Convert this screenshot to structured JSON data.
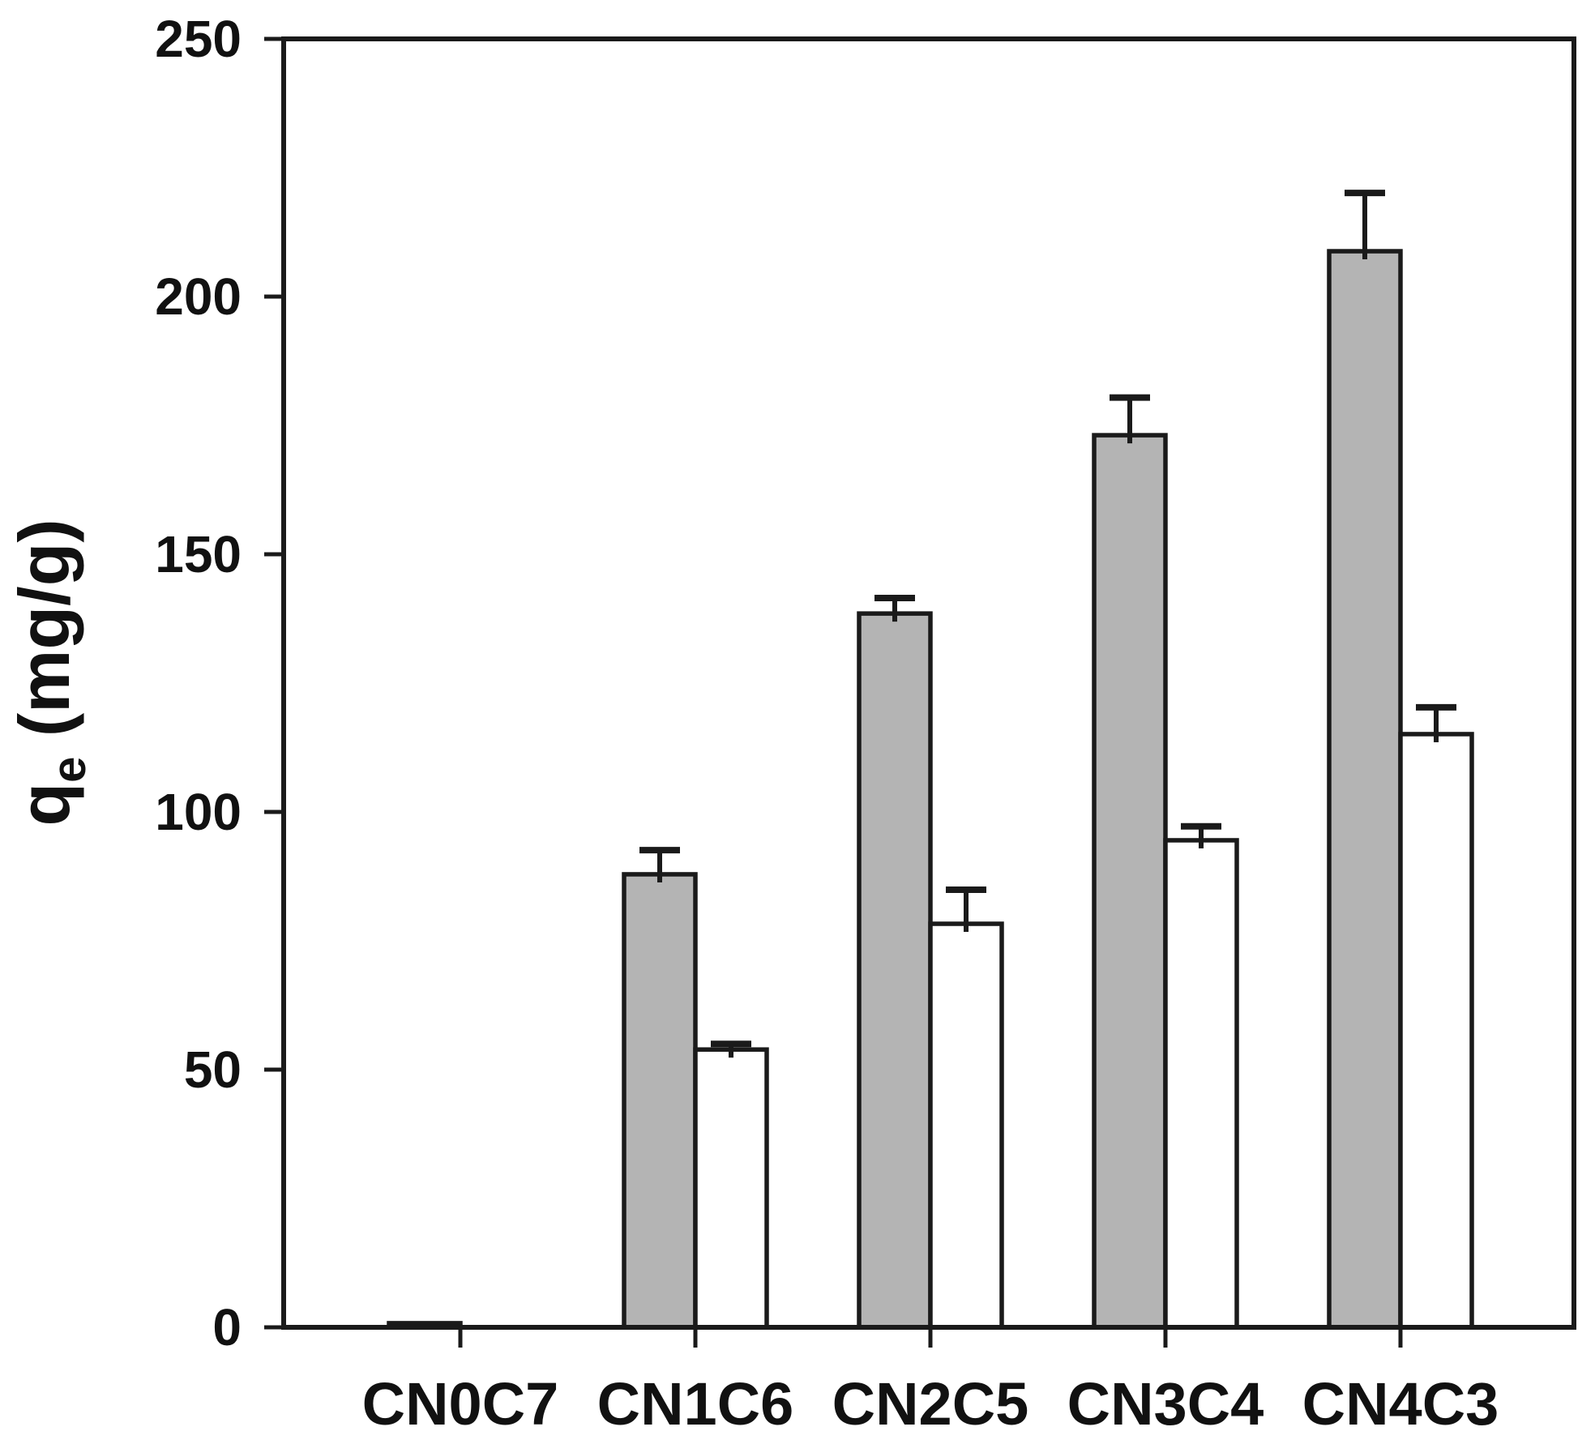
{
  "chart_data": {
    "type": "bar",
    "title": "",
    "xlabel": "",
    "ylabel_parts": {
      "base": "q",
      "sub": "e",
      "rest": " (mg/g)"
    },
    "ylabel_text": "qe (mg/g)",
    "categories": [
      "CN0C7",
      "CN1C6",
      "CN2C5",
      "CN3C4",
      "CN4C3"
    ],
    "series": [
      {
        "name": "gray-filled-bars",
        "fill": "#b4b4b4",
        "values": [
          0.8,
          87.9,
          138.5,
          173.1,
          208.8
        ],
        "errors": [
          0,
          4.7,
          3.0,
          7.3,
          11.3
        ]
      },
      {
        "name": "white-open-bars",
        "fill": "#ffffff",
        "values": [
          0,
          53.9,
          78.3,
          94.5,
          115.1
        ],
        "errors": [
          0,
          1.1,
          6.6,
          2.7,
          5.2
        ]
      }
    ],
    "ylim": [
      0,
      250
    ],
    "yticks": [
      0,
      50,
      100,
      150,
      200,
      250
    ],
    "grid": false,
    "legend": "none",
    "error_bars": "upper-only",
    "frame": "full-box",
    "axis_color": "#1a1a1a",
    "background": "#ffffff"
  }
}
